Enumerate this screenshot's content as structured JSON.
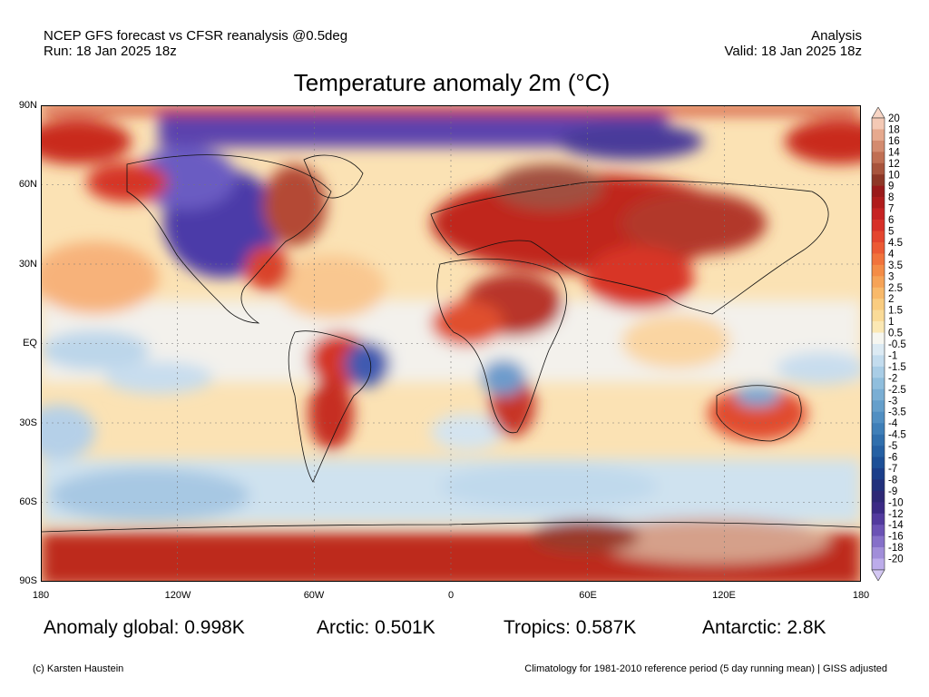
{
  "header": {
    "line1_left": "NCEP GFS forecast vs CFSR reanalysis @0.5deg",
    "line2_left": "Run: 18 Jan 2025 18z",
    "line1_right": "Analysis",
    "line2_right": "Valid: 18 Jan 2025 18z"
  },
  "title": "Temperature anomaly 2m (°C)",
  "axes": {
    "lat_labels": [
      "90N",
      "60N",
      "30N",
      "EQ",
      "30S",
      "60S",
      "90S"
    ],
    "lon_labels": [
      "180",
      "120W",
      "60W",
      "0",
      "60E",
      "120E",
      "180"
    ]
  },
  "colorbar": {
    "labels": [
      "20",
      "18",
      "16",
      "14",
      "12",
      "10",
      "9",
      "8",
      "7",
      "6",
      "5",
      "4.5",
      "4",
      "3.5",
      "3",
      "2.5",
      "2",
      "1.5",
      "1",
      "0.5",
      "-0.5",
      "-1",
      "-1.5",
      "-2",
      "-2.5",
      "-3",
      "-3.5",
      "-4",
      "-4.5",
      "-5",
      "-6",
      "-7",
      "-8",
      "-9",
      "-10",
      "-12",
      "-14",
      "-16",
      "-18",
      "-20"
    ],
    "colors": [
      "#f4c9b5",
      "#e6a98e",
      "#d38b6f",
      "#c06f53",
      "#a8543c",
      "#8e3726",
      "#9a1a1a",
      "#b01c1c",
      "#c62222",
      "#d73028",
      "#e4452e",
      "#ec5a34",
      "#f1733c",
      "#f48c47",
      "#f6a357",
      "#f8b96a",
      "#f9cc80",
      "#fadb98",
      "#fbe8b4",
      "#f6f6f0",
      "#dceaf3",
      "#c3dcee",
      "#a9cde6",
      "#90bedd",
      "#7aaed4",
      "#659fcb",
      "#518fc2",
      "#3f7fb8",
      "#306fad",
      "#2560a3",
      "#1c4f97",
      "#1a3e8a",
      "#21307c",
      "#2e2876",
      "#3b2a85",
      "#523a9e",
      "#6b52b5",
      "#8670c9",
      "#a18ed9",
      "#bcacea"
    ],
    "tri_top_color": "#f7d5c5",
    "tri_bottom_color": "#d3c7f2"
  },
  "stats": {
    "global": "Anomaly global: 0.998K",
    "arctic": "Arctic: 0.501K",
    "tropics": "Tropics: 0.587K",
    "antarctic": "Antarctic: 2.8K"
  },
  "footer": {
    "credit": "(c) Karsten Haustein",
    "note": "Climatology for 1981-2010 reference period (5 day running mean) | GISS adjusted"
  }
}
